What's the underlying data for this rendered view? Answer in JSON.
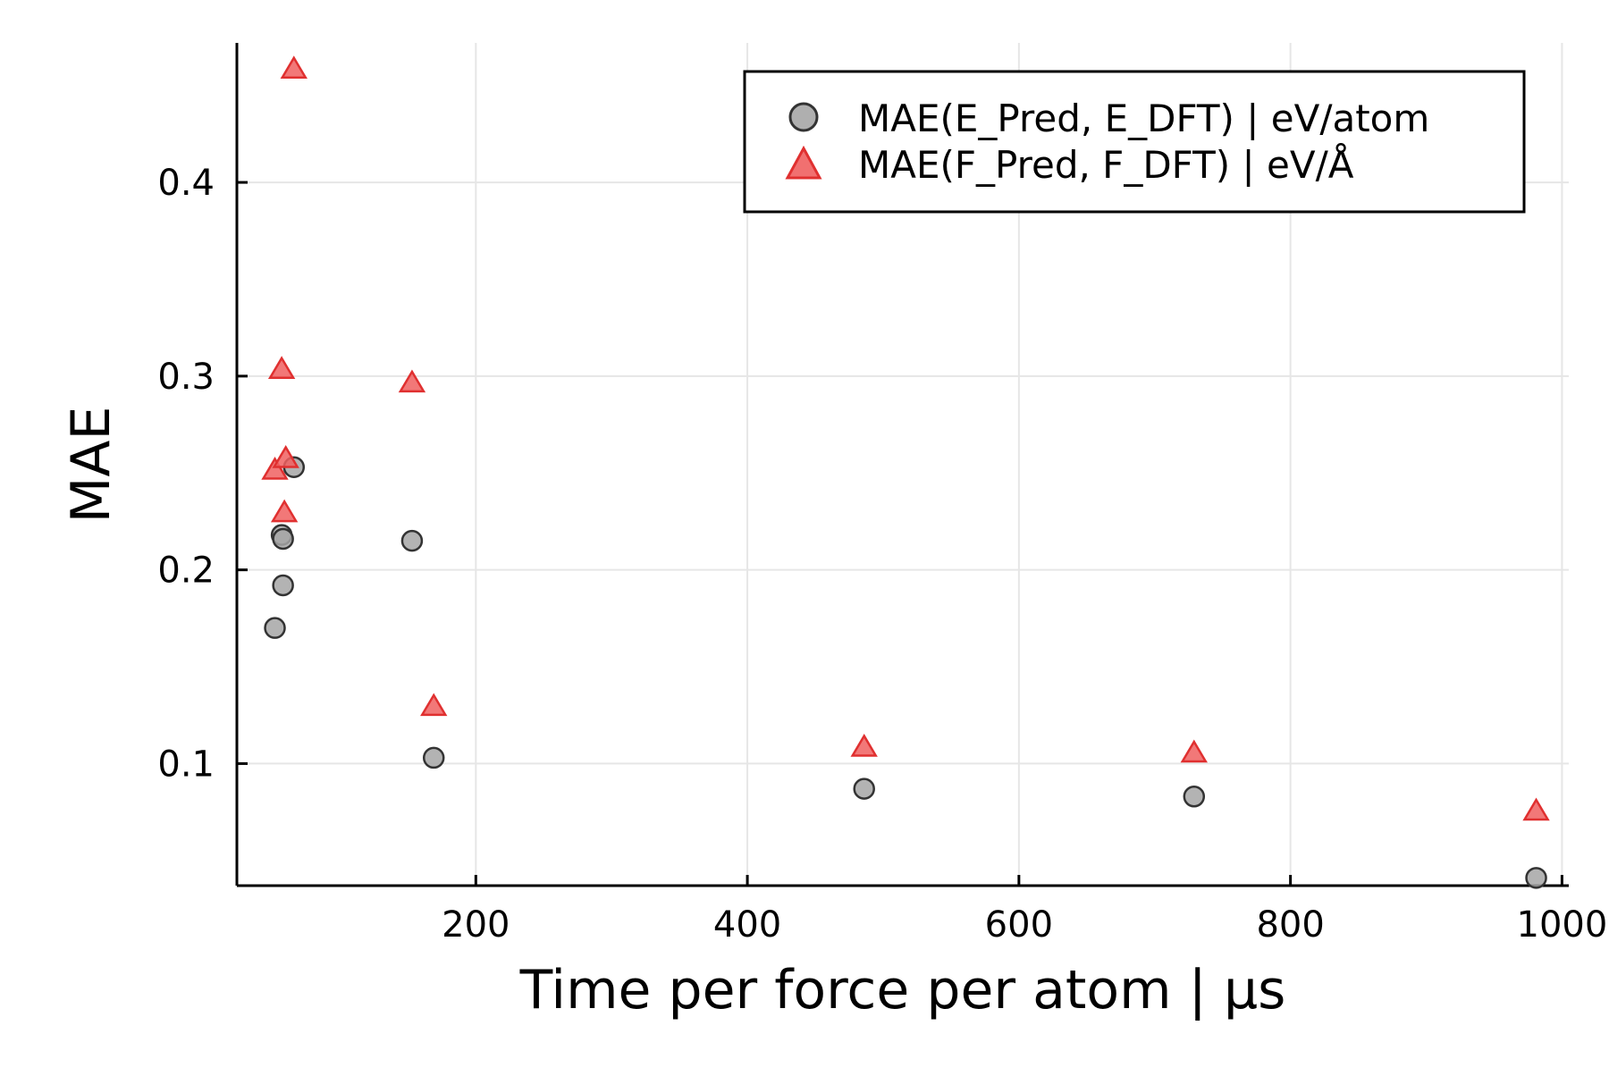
{
  "chart_data": {
    "type": "scatter",
    "title": "",
    "xlabel": "Time per force per atom | µs",
    "ylabel": "MAE",
    "xlim": [
      24,
      1005
    ],
    "ylim": [
      0.037,
      0.472
    ],
    "xticks": [
      200,
      400,
      600,
      800,
      1000
    ],
    "yticks": [
      0.1,
      0.2,
      0.3,
      0.4
    ],
    "xtick_labels": [
      "200",
      "400",
      "600",
      "800",
      "1000"
    ],
    "ytick_labels": [
      "0.1",
      "0.2",
      "0.3",
      "0.4"
    ],
    "grid": true,
    "legend_position": "top-right",
    "series": [
      {
        "name": "MAE(E_Pred, E_DFT) | eV/atom",
        "marker": "circle",
        "color": "#a6a6a6",
        "stroke": "#333333",
        "x": [
          52,
          57,
          58,
          58,
          66,
          153,
          169,
          486,
          729,
          981
        ],
        "y": [
          0.17,
          0.218,
          0.216,
          0.192,
          0.253,
          0.215,
          0.103,
          0.087,
          0.083,
          0.041
        ]
      },
      {
        "name": "MAE(F_Pred, F_DFT) | eV/Å",
        "marker": "triangle",
        "color": "#f06060",
        "stroke": "#e03030",
        "x": [
          52,
          57,
          60,
          59,
          66,
          153,
          169,
          486,
          729,
          981
        ],
        "y": [
          0.251,
          0.303,
          0.257,
          0.229,
          0.458,
          0.296,
          0.129,
          0.108,
          0.105,
          0.075
        ]
      }
    ]
  }
}
